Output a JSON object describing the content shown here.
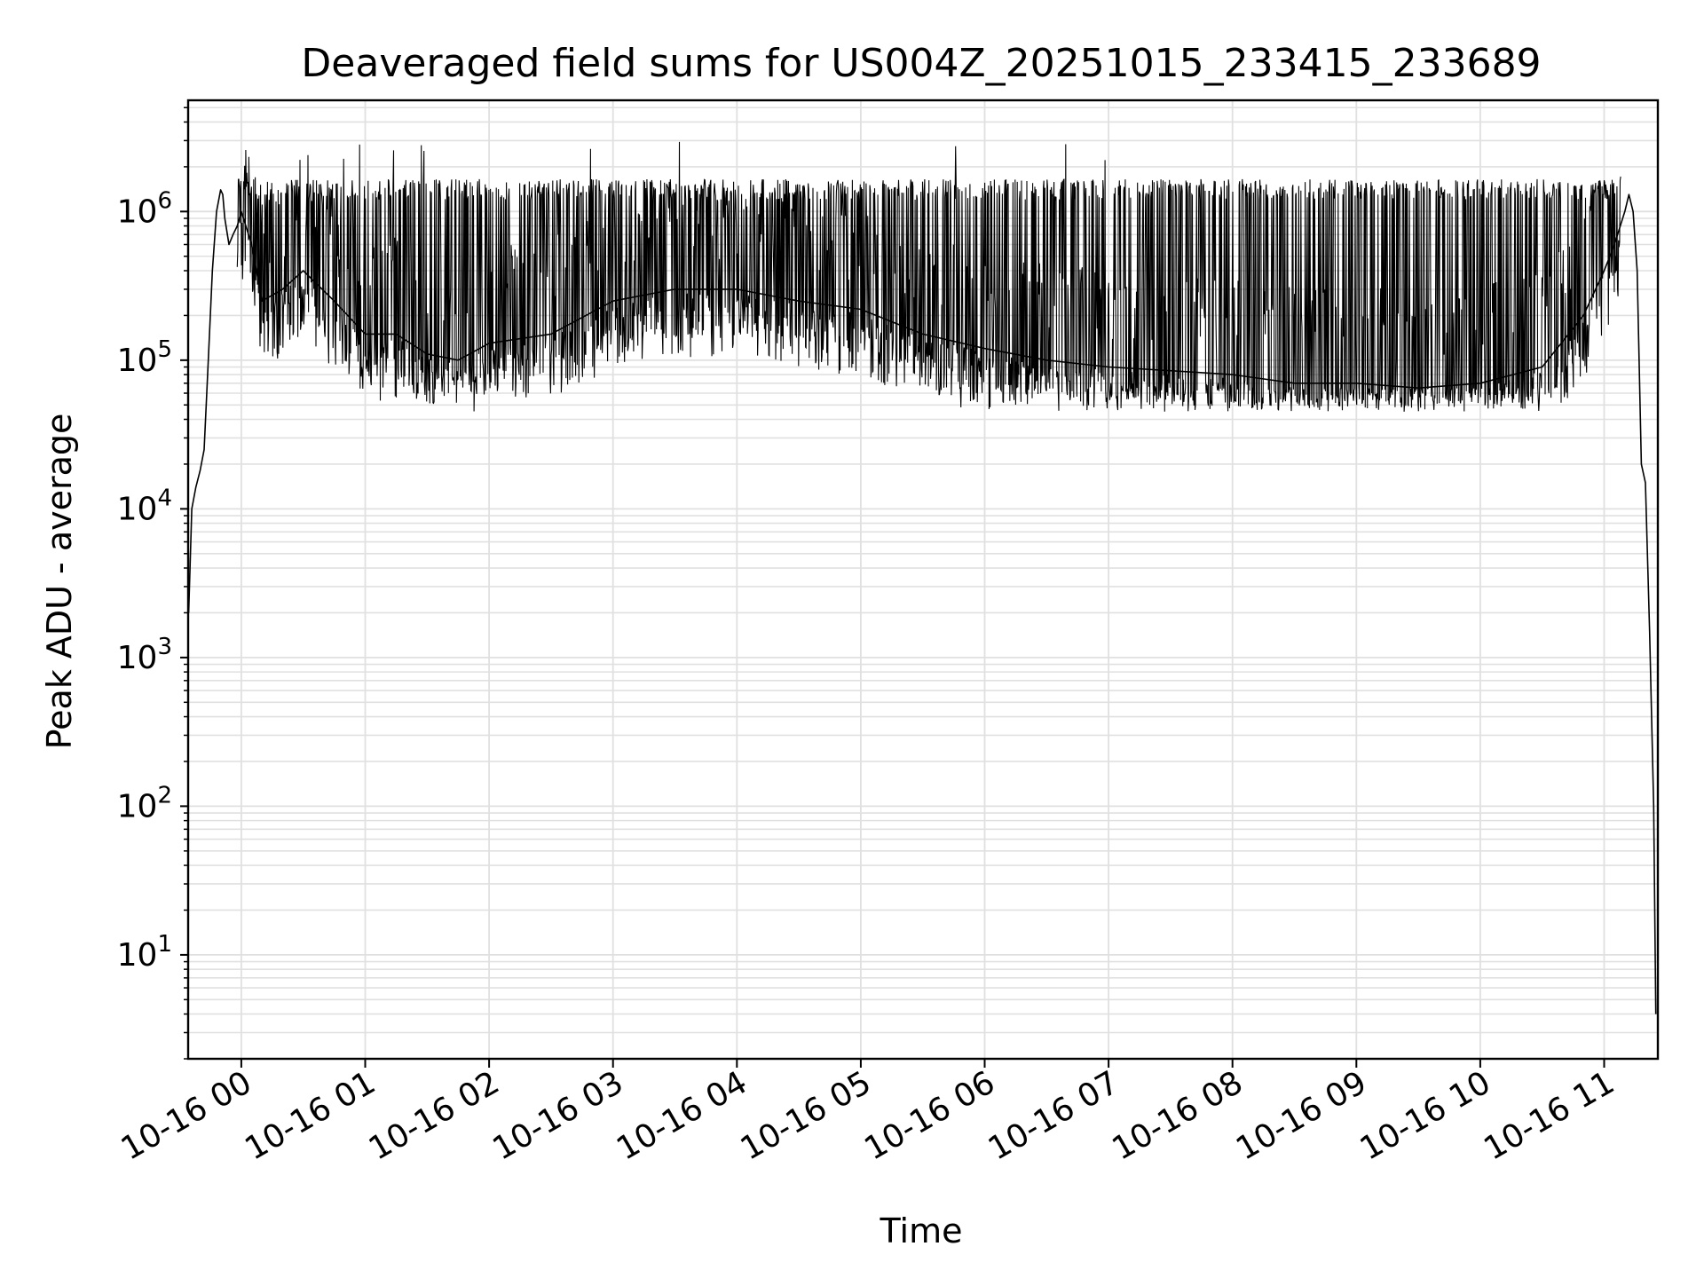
{
  "chart_data": {
    "type": "line",
    "title": "Deaveraged field sums for US004Z_20251015_233415_233689",
    "xlabel": "Time",
    "ylabel": "Peak ADU - average",
    "yscale": "log",
    "grid": "on (major and minor)",
    "xlim": [
      "2025-10-15 23:34:15",
      "2025-10-16 11:26:00"
    ],
    "ylim": [
      2,
      5600000.0
    ],
    "x_tick_labels": [
      "10-16 00",
      "10-16 01",
      "10-16 02",
      "10-16 03",
      "10-16 04",
      "10-16 05",
      "10-16 06",
      "10-16 07",
      "10-16 08",
      "10-16 09",
      "10-16 10",
      "10-16 11"
    ],
    "y_tick_labels": [
      {
        "base": "10",
        "exp": "1"
      },
      {
        "base": "10",
        "exp": "2"
      },
      {
        "base": "10",
        "exp": "3"
      },
      {
        "base": "10",
        "exp": "4"
      },
      {
        "base": "10",
        "exp": "5"
      },
      {
        "base": "10",
        "exp": "6"
      }
    ],
    "series": [
      {
        "color": "#000000",
        "x": [
          "2025-10-15 23:34:30",
          "2025-10-15 23:36",
          "2025-10-15 23:38",
          "2025-10-15 23:40",
          "2025-10-15 23:42",
          "2025-10-15 23:44",
          "2025-10-15 23:46",
          "2025-10-15 23:48",
          "2025-10-15 23:50",
          "2025-10-15 23:51",
          "2025-10-15 23:52",
          "2025-10-15 23:54",
          "2025-10-15 23:56",
          "2025-10-15 23:58",
          "2025-10-16 00:00",
          "2025-10-16 00:05",
          "2025-10-16 00:10",
          "2025-10-16 00:20",
          "2025-10-16 00:30",
          "2025-10-16 00:45",
          "2025-10-16 01:00",
          "2025-10-16 01:15",
          "2025-10-16 01:30",
          "2025-10-16 01:45",
          "2025-10-16 02:00",
          "2025-10-16 02:30",
          "2025-10-16 03:00",
          "2025-10-16 03:30",
          "2025-10-16 04:00",
          "2025-10-16 04:30",
          "2025-10-16 05:00",
          "2025-10-16 05:30",
          "2025-10-16 06:00",
          "2025-10-16 06:30",
          "2025-10-16 07:00",
          "2025-10-16 07:30",
          "2025-10-16 08:00",
          "2025-10-16 08:30",
          "2025-10-16 09:00",
          "2025-10-16 09:30",
          "2025-10-16 10:00",
          "2025-10-16 10:30",
          "2025-10-16 10:50",
          "2025-10-16 11:00",
          "2025-10-16 11:05",
          "2025-10-16 11:10",
          "2025-10-16 11:12",
          "2025-10-16 11:14",
          "2025-10-16 11:16",
          "2025-10-16 11:18",
          "2025-10-16 11:20",
          "2025-10-16 11:22",
          "2025-10-16 11:24",
          "2025-10-16 11:25"
        ],
        "y": [
          2000,
          10000,
          14000,
          18000,
          25000,
          100000,
          400000,
          1000000,
          1400000,
          1300000,
          900000,
          600000,
          700000,
          800000,
          1000000,
          600000,
          250000,
          300000,
          400000,
          250000,
          150000,
          150000,
          110000,
          100000,
          130000,
          150000,
          250000,
          300000,
          300000,
          250000,
          220000,
          150000,
          120000,
          100000,
          90000,
          85000,
          80000,
          70000,
          70000,
          65000,
          70000,
          90000,
          200000,
          400000,
          600000,
          1000000,
          1300000,
          1000000,
          400000,
          20000,
          15000,
          1500,
          100,
          4
        ]
      }
    ]
  }
}
